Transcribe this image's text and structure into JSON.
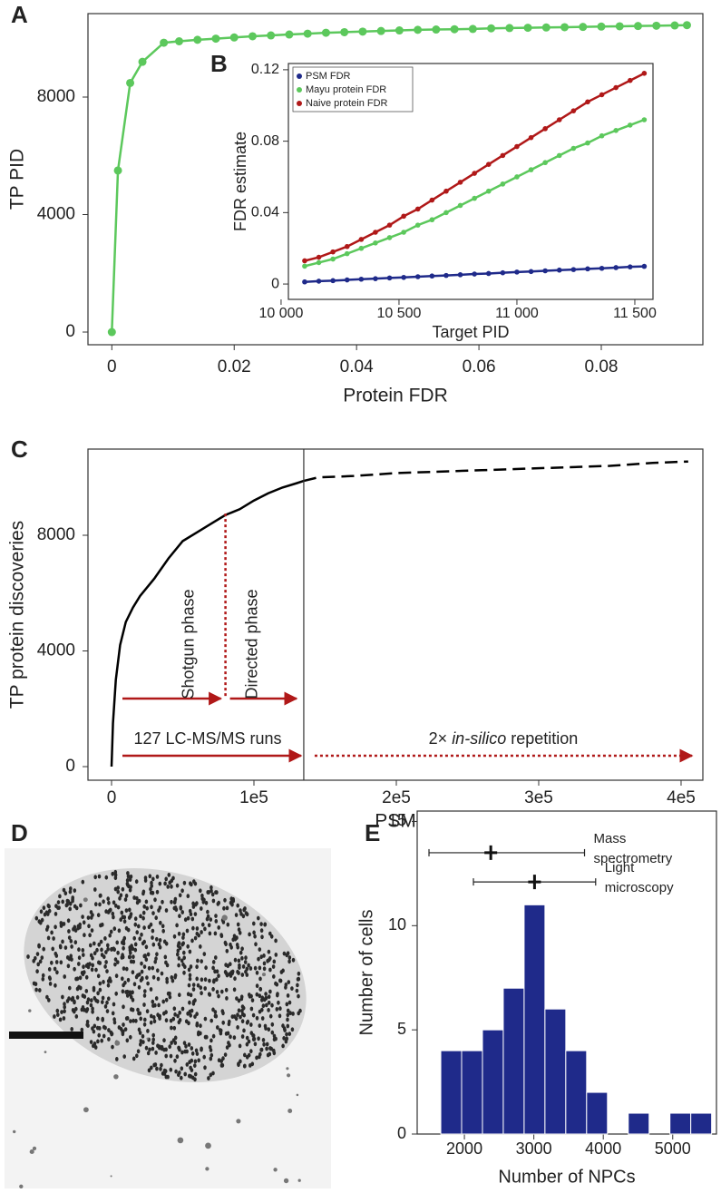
{
  "chart_data": [
    {
      "type": "line",
      "label": "A",
      "xlabel": "Protein FDR",
      "ylabel": "TP PID",
      "color": "#5cc85c",
      "markers": true,
      "x": [
        0,
        0.001,
        0.003,
        0.005,
        0.0085,
        0.011,
        0.014,
        0.017,
        0.02,
        0.023,
        0.026,
        0.029,
        0.032,
        0.035,
        0.038,
        0.041,
        0.044,
        0.047,
        0.05,
        0.053,
        0.056,
        0.059,
        0.062,
        0.065,
        0.068,
        0.071,
        0.074,
        0.077,
        0.08,
        0.083,
        0.086,
        0.089,
        0.092,
        0.094
      ],
      "values": [
        0,
        5500,
        8480,
        9200,
        9850,
        9900,
        9950,
        9990,
        10030,
        10070,
        10100,
        10130,
        10160,
        10190,
        10210,
        10230,
        10250,
        10270,
        10290,
        10300,
        10310,
        10320,
        10340,
        10350,
        10360,
        10370,
        10380,
        10390,
        10400,
        10410,
        10420,
        10430,
        10440,
        10450
      ],
      "xlim": [
        -0.0039,
        0.0966
      ],
      "ylim": [
        -432,
        10842
      ],
      "xticks": [
        0,
        0.02,
        0.04,
        0.06,
        0.08
      ],
      "yticks": [
        0,
        4000,
        8000
      ]
    },
    {
      "type": "line",
      "label": "B",
      "xlabel": "Target PID",
      "ylabel": "FDR estimate",
      "markers": true,
      "legend": "upper left",
      "x": [
        10100,
        10160,
        10220,
        10280,
        10340,
        10400,
        10460,
        10520,
        10580,
        10640,
        10700,
        10760,
        10820,
        10880,
        10940,
        11000,
        11060,
        11120,
        11180,
        11240,
        11300,
        11360,
        11420,
        11480,
        11540
      ],
      "series": [
        {
          "name": "PSM FDR",
          "color": "#1f2a8a",
          "values": [
            0.0012,
            0.0016,
            0.0019,
            0.0023,
            0.0027,
            0.003,
            0.0034,
            0.0037,
            0.0041,
            0.0045,
            0.0048,
            0.0052,
            0.0056,
            0.0059,
            0.0063,
            0.0067,
            0.007,
            0.0074,
            0.0078,
            0.0081,
            0.0085,
            0.0088,
            0.0092,
            0.0096,
            0.0099
          ]
        },
        {
          "name": "Mayu protein FDR",
          "color": "#5cc85c",
          "values": [
            0.01,
            0.012,
            0.014,
            0.017,
            0.02,
            0.023,
            0.026,
            0.029,
            0.033,
            0.036,
            0.04,
            0.044,
            0.048,
            0.052,
            0.056,
            0.06,
            0.064,
            0.068,
            0.072,
            0.076,
            0.079,
            0.083,
            0.086,
            0.089,
            0.092
          ]
        },
        {
          "name": "Naive protein FDR",
          "color": "#b01818",
          "values": [
            0.013,
            0.015,
            0.018,
            0.021,
            0.025,
            0.029,
            0.033,
            0.038,
            0.042,
            0.047,
            0.052,
            0.057,
            0.062,
            0.067,
            0.072,
            0.077,
            0.082,
            0.087,
            0.092,
            0.097,
            0.102,
            0.106,
            0.11,
            0.114,
            0.118
          ]
        }
      ],
      "xlim": [
        10031,
        11577
      ],
      "ylim": [
        -0.0086,
        0.1235
      ],
      "xticks": [
        {
          "value": 10000,
          "label": "10 000"
        },
        {
          "value": 10500,
          "label": "10 500"
        },
        {
          "value": 11000,
          "label": "11 000"
        },
        {
          "value": 11500,
          "label": "11 500"
        }
      ],
      "yticks": [
        0,
        0.04,
        0.08,
        0.12
      ]
    },
    {
      "type": "line",
      "label": "C",
      "xlabel": "PSM",
      "ylabel": "TP protein discoveries",
      "color": "#000000",
      "lines": [
        {
          "style": "solid",
          "x": [
            0,
            1000,
            3000,
            6000,
            10000,
            15000,
            20000,
            30000,
            40000,
            50000,
            60000,
            70000,
            80000,
            90000,
            100000,
            110000,
            120000,
            130000,
            135000
          ],
          "values": [
            0,
            1500,
            3000,
            4200,
            5000,
            5500,
            5900,
            6500,
            7200,
            7800,
            8100,
            8400,
            8700,
            8900,
            9200,
            9450,
            9650,
            9800,
            9880
          ]
        },
        {
          "style": "dashed",
          "x": [
            135000,
            145000,
            170000,
            200000,
            230000,
            260000,
            290000,
            320000,
            350000,
            380000,
            405000
          ],
          "values": [
            9880,
            10000,
            10050,
            10150,
            10200,
            10250,
            10300,
            10350,
            10400,
            10500,
            10550
          ]
        }
      ],
      "vlines": [
        {
          "x": 135000,
          "color": "#333333",
          "style": "solid"
        },
        {
          "x": 80000,
          "y": 8750,
          "color": "#b01818",
          "style": "dotted"
        }
      ],
      "annotations": {
        "shotgun": "Shotgun phase",
        "directed": "Directed phase",
        "runs": "127 LC-MS/MS runs",
        "repetition": [
          "2×",
          "in-silico",
          "repetition"
        ]
      },
      "arrow_color": "#b01818",
      "xlim": [
        -16560,
        415300
      ],
      "ylim": [
        -470,
        10980
      ],
      "xticks": [
        0,
        {
          "value": 100000,
          "label": "1e5"
        },
        {
          "value": 200000,
          "label": "2e5"
        },
        {
          "value": 300000,
          "label": "3e5"
        },
        {
          "value": 400000,
          "label": "4e5"
        }
      ],
      "yticks": [
        0,
        4000,
        8000
      ]
    },
    {
      "type": "image",
      "label": "D"
    },
    {
      "type": "histogram",
      "label": "E",
      "xlabel": "Number of NPCs",
      "ylabel": "Number of cells",
      "color": "#1f2a8a",
      "bins": [
        1660,
        1960,
        2260,
        2560,
        2860,
        3160,
        3460,
        3760,
        4060,
        4360,
        4660,
        4960,
        5260,
        5560
      ],
      "values": [
        4,
        4,
        5,
        7,
        11,
        6,
        4,
        2,
        0,
        1,
        0,
        1,
        1
      ],
      "errorbars": [
        {
          "label": [
            "Mass",
            "spectrometry"
          ],
          "x": 2380,
          "xmin": 1490,
          "xmax": 3730,
          "y": 13.5
        },
        {
          "label": [
            "Light",
            "microscopy"
          ],
          "x": 3010,
          "xmin": 2130,
          "xmax": 3890,
          "y": 12.1
        }
      ],
      "xlim": [
        1320,
        5630
      ],
      "ylim": [
        0,
        15.5
      ],
      "xticks": [
        2000,
        3000,
        4000,
        5000
      ],
      "yticks": [
        0,
        5,
        10,
        15
      ]
    }
  ]
}
